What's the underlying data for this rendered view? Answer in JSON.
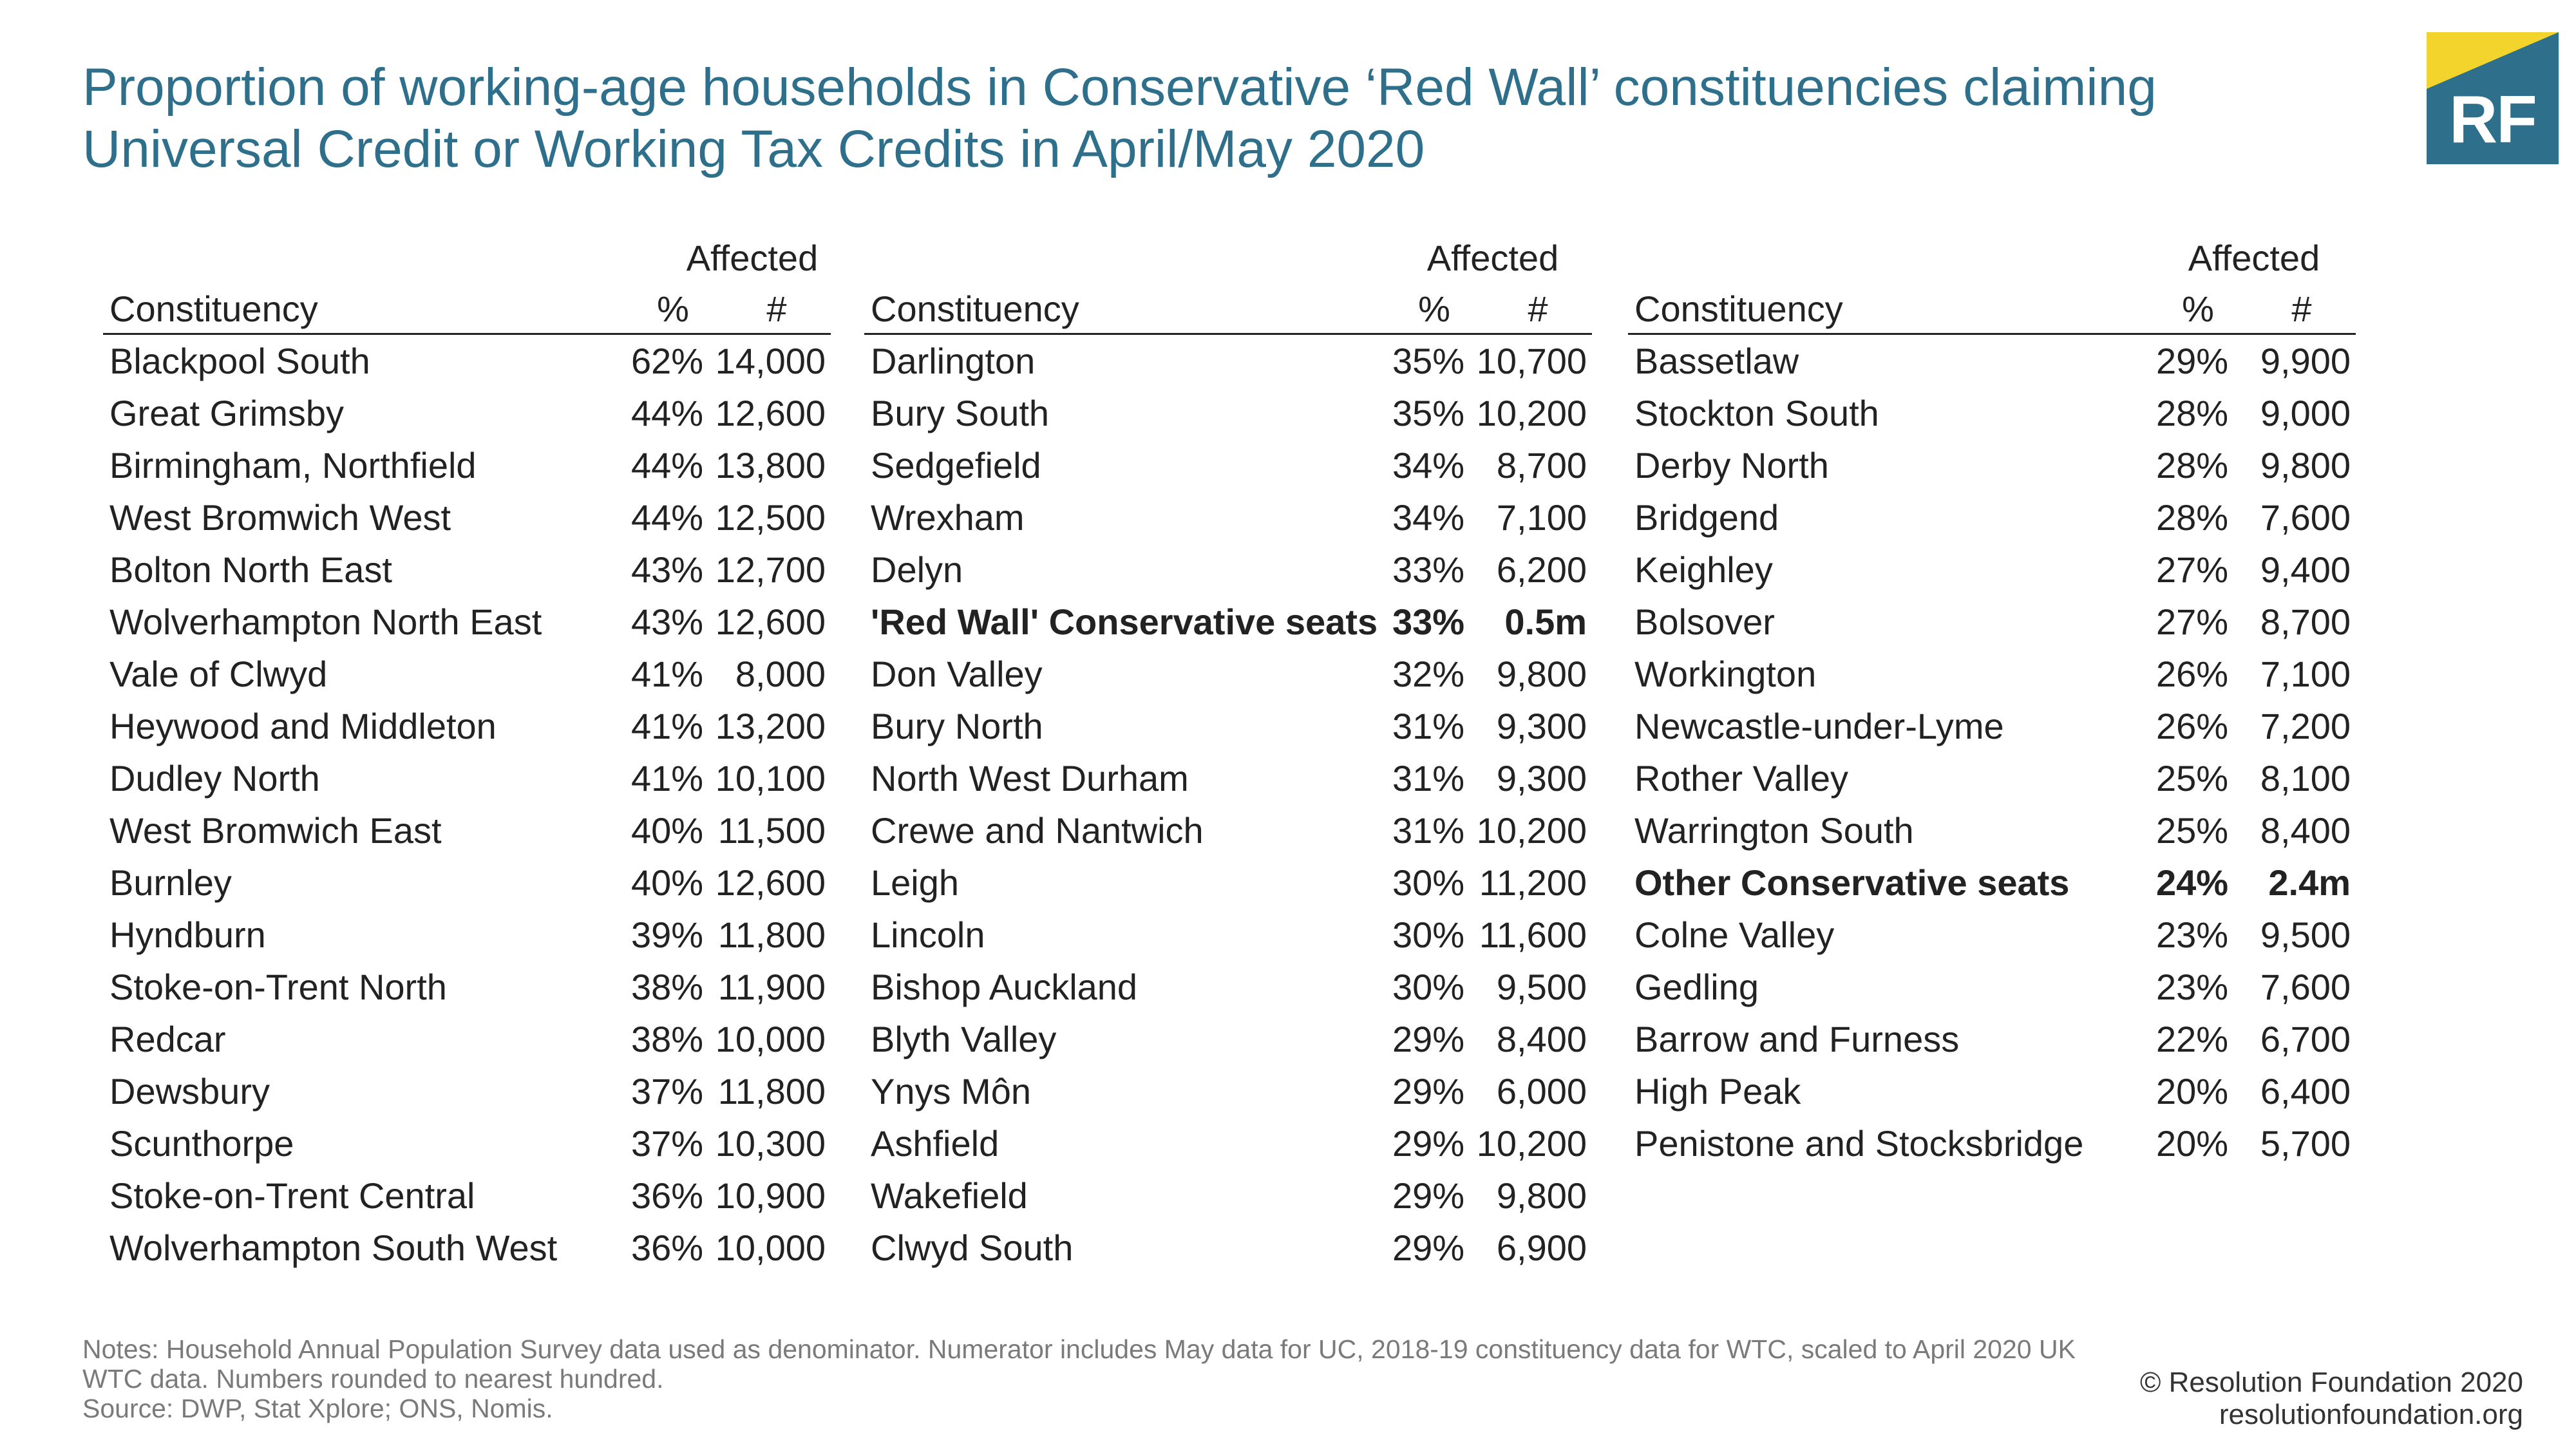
{
  "title": {
    "line1": "Proportion of working-age households in Conservative ‘Red Wall’ constituencies claiming",
    "line2": "Universal Credit or Working Tax Credits in April/May 2020"
  },
  "logo": {
    "text": "RF",
    "colors": {
      "blue": "#2e6f8b",
      "yellow": "#f2d42c"
    }
  },
  "chart_data": {
    "type": "table",
    "title": "Proportion of working-age households in Conservative ‘Red Wall’ constituencies claiming Universal Credit or Working Tax Credits in April/May 2020",
    "header_group": "Affected",
    "columns": [
      "Constituency",
      "%",
      "#"
    ],
    "tables": [
      {
        "rows": [
          {
            "name": "Blackpool South",
            "pct": "62%",
            "num": "14,000"
          },
          {
            "name": "Great Grimsby",
            "pct": "44%",
            "num": "12,600"
          },
          {
            "name": "Birmingham, Northfield",
            "pct": "44%",
            "num": "13,800"
          },
          {
            "name": "West Bromwich West",
            "pct": "44%",
            "num": "12,500"
          },
          {
            "name": "Bolton North East",
            "pct": "43%",
            "num": "12,700"
          },
          {
            "name": "Wolverhampton North East",
            "pct": "43%",
            "num": "12,600"
          },
          {
            "name": "Vale of Clwyd",
            "pct": "41%",
            "num": "8,000"
          },
          {
            "name": "Heywood and Middleton",
            "pct": "41%",
            "num": "13,200"
          },
          {
            "name": "Dudley North",
            "pct": "41%",
            "num": "10,100"
          },
          {
            "name": "West Bromwich East",
            "pct": "40%",
            "num": "11,500"
          },
          {
            "name": "Burnley",
            "pct": "40%",
            "num": "12,600"
          },
          {
            "name": "Hyndburn",
            "pct": "39%",
            "num": "11,800"
          },
          {
            "name": "Stoke-on-Trent North",
            "pct": "38%",
            "num": "11,900"
          },
          {
            "name": "Redcar",
            "pct": "38%",
            "num": "10,000"
          },
          {
            "name": "Dewsbury",
            "pct": "37%",
            "num": "11,800"
          },
          {
            "name": "Scunthorpe",
            "pct": "37%",
            "num": "10,300"
          },
          {
            "name": "Stoke-on-Trent Central",
            "pct": "36%",
            "num": "10,900"
          },
          {
            "name": "Wolverhampton South West",
            "pct": "36%",
            "num": "10,000"
          }
        ]
      },
      {
        "rows": [
          {
            "name": "Darlington",
            "pct": "35%",
            "num": "10,700"
          },
          {
            "name": "Bury South",
            "pct": "35%",
            "num": "10,200"
          },
          {
            "name": "Sedgefield",
            "pct": "34%",
            "num": "8,700"
          },
          {
            "name": "Wrexham",
            "pct": "34%",
            "num": "7,100"
          },
          {
            "name": "Delyn",
            "pct": "33%",
            "num": "6,200"
          },
          {
            "name": "'Red Wall' Conservative seats",
            "pct": "33%",
            "num": "0.5m",
            "bold": true
          },
          {
            "name": "Don Valley",
            "pct": "32%",
            "num": "9,800"
          },
          {
            "name": "Bury North",
            "pct": "31%",
            "num": "9,300"
          },
          {
            "name": "North West Durham",
            "pct": "31%",
            "num": "9,300"
          },
          {
            "name": "Crewe and Nantwich",
            "pct": "31%",
            "num": "10,200"
          },
          {
            "name": "Leigh",
            "pct": "30%",
            "num": "11,200"
          },
          {
            "name": "Lincoln",
            "pct": "30%",
            "num": "11,600"
          },
          {
            "name": "Bishop Auckland",
            "pct": "30%",
            "num": "9,500"
          },
          {
            "name": "Blyth Valley",
            "pct": "29%",
            "num": "8,400"
          },
          {
            "name": "Ynys Môn",
            "pct": "29%",
            "num": "6,000"
          },
          {
            "name": "Ashfield",
            "pct": "29%",
            "num": "10,200"
          },
          {
            "name": "Wakefield",
            "pct": "29%",
            "num": "9,800"
          },
          {
            "name": "Clwyd South",
            "pct": "29%",
            "num": "6,900"
          }
        ]
      },
      {
        "rows": [
          {
            "name": "Bassetlaw",
            "pct": "29%",
            "num": "9,900"
          },
          {
            "name": "Stockton South",
            "pct": "28%",
            "num": "9,000"
          },
          {
            "name": "Derby North",
            "pct": "28%",
            "num": "9,800"
          },
          {
            "name": "Bridgend",
            "pct": "28%",
            "num": "7,600"
          },
          {
            "name": "Keighley",
            "pct": "27%",
            "num": "9,400"
          },
          {
            "name": "Bolsover",
            "pct": "27%",
            "num": "8,700"
          },
          {
            "name": "Workington",
            "pct": "26%",
            "num": "7,100"
          },
          {
            "name": "Newcastle-under-Lyme",
            "pct": "26%",
            "num": "7,200"
          },
          {
            "name": "Rother Valley",
            "pct": "25%",
            "num": "8,100"
          },
          {
            "name": "Warrington South",
            "pct": "25%",
            "num": "8,400"
          },
          {
            "name": "Other Conservative seats",
            "pct": "24%",
            "num": "2.4m",
            "bold": true
          },
          {
            "name": "Colne Valley",
            "pct": "23%",
            "num": "9,500"
          },
          {
            "name": "Gedling",
            "pct": "23%",
            "num": "7,600"
          },
          {
            "name": "Barrow and Furness",
            "pct": "22%",
            "num": "6,700"
          },
          {
            "name": "High Peak",
            "pct": "20%",
            "num": "6,400"
          },
          {
            "name": "Penistone and Stocksbridge",
            "pct": "20%",
            "num": "5,700"
          }
        ]
      }
    ]
  },
  "notes": {
    "line1": "Notes: Household Annual Population Survey data used as denominator. Numerator includes May data for UC, 2018-19 constituency data for WTC, scaled to April 2020 UK",
    "line2": "WTC data. Numbers rounded to nearest hundred.",
    "line3": "Source: DWP, Stat Xplore; ONS, Nomis."
  },
  "credit": {
    "line1": "© Resolution Foundation 2020",
    "line2": "resolutionfoundation.org"
  }
}
